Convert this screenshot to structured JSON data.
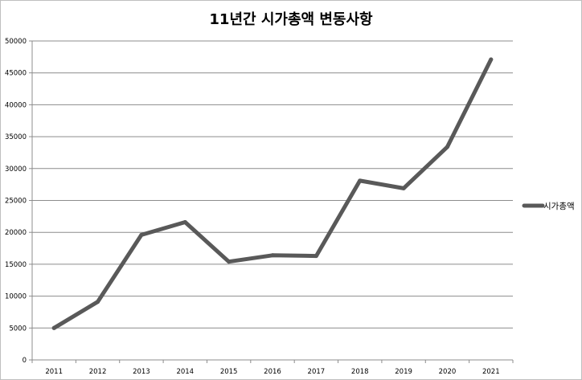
{
  "chart_data": {
    "type": "line",
    "title": "11년간 시가총액 변동사항",
    "xlabel": "",
    "ylabel": "",
    "categories": [
      "2011",
      "2012",
      "2013",
      "2014",
      "2015",
      "2016",
      "2017",
      "2018",
      "2019",
      "2020",
      "2021"
    ],
    "series": [
      {
        "name": "시가총액",
        "values": [
          5000,
          9100,
          19600,
          21600,
          15400,
          16400,
          16300,
          28100,
          26900,
          33400,
          47100
        ],
        "color": "#595959"
      }
    ],
    "ylim": [
      0,
      50000
    ],
    "yticks": [
      0,
      5000,
      10000,
      15000,
      20000,
      25000,
      30000,
      35000,
      40000,
      45000,
      50000
    ],
    "grid": true,
    "legend_position": "right"
  }
}
